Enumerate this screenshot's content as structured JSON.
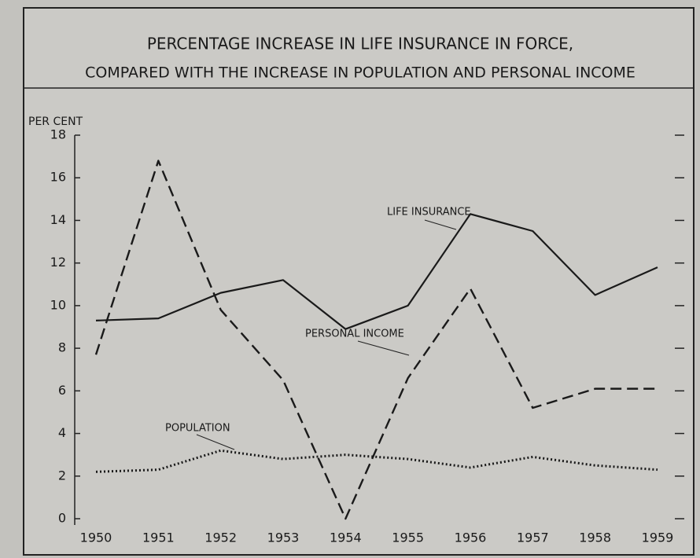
{
  "chart_data": {
    "type": "line",
    "title": [
      "PERCENTAGE INCREASE IN LIFE INSURANCE IN FORCE,",
      "COMPARED WITH THE INCREASE IN POPULATION AND PERSONAL INCOME"
    ],
    "y_label": "PER CENT",
    "categories": [
      "1950",
      "1951",
      "1952",
      "1953",
      "1954",
      "1955",
      "1956",
      "1957",
      "1958",
      "1959"
    ],
    "series": [
      {
        "name": "LIFE INSURANCE",
        "color": "#1a1a1a",
        "dash": "solid",
        "values": [
          9.3,
          9.4,
          10.6,
          11.2,
          8.9,
          10.0,
          14.3,
          13.5,
          10.5,
          11.8
        ]
      },
      {
        "name": "PERSONAL INCOME",
        "color": "#1a1a1a",
        "dash": "dashed",
        "values": [
          7.7,
          16.8,
          9.8,
          6.5,
          0,
          6.6,
          10.8,
          5.2,
          6.1,
          6.1
        ]
      },
      {
        "name": "POPULATION",
        "color": "#1a1a1a",
        "dash": "dotted",
        "values": [
          2.2,
          2.3,
          3.2,
          2.8,
          3.0,
          2.8,
          2.4,
          2.9,
          2.5,
          2.3
        ]
      }
    ],
    "ylim": [
      0,
      18
    ],
    "yticks": [
      0,
      2,
      4,
      6,
      8,
      10,
      12,
      14,
      16,
      18
    ],
    "legend": "inline",
    "grid": false
  }
}
